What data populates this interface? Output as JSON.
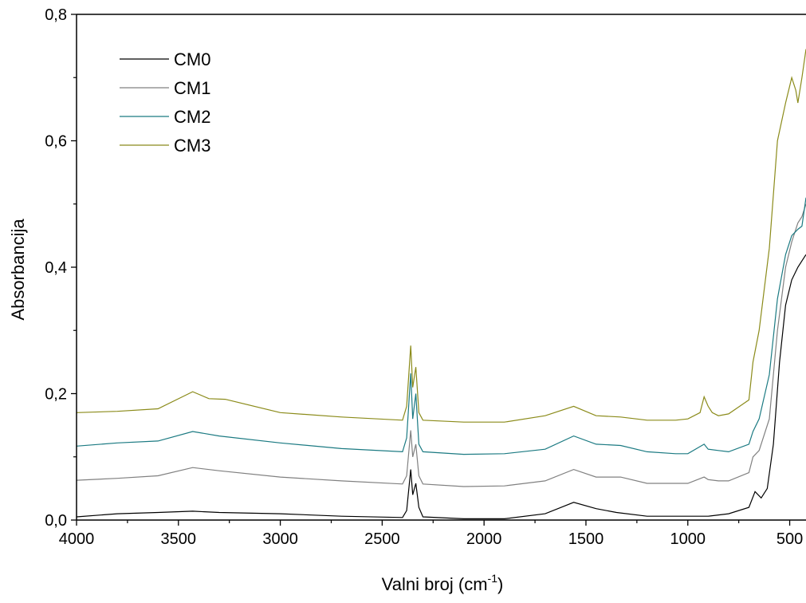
{
  "chart_data": {
    "type": "line",
    "xlabel": {
      "prefix": "Valni broj (cm",
      "superscript": "-1",
      "suffix": ")"
    },
    "ylabel": "Absorbancija",
    "xlim": [
      4000,
      420
    ],
    "ylim": [
      0,
      0.8
    ],
    "x_reversed": true,
    "x_ticks": [
      4000,
      3500,
      3000,
      2500,
      2000,
      1500,
      1000,
      500
    ],
    "x_tick_labels": [
      "4000",
      "3500",
      "3000",
      "2500",
      "2000",
      "1500",
      "1000",
      "500"
    ],
    "y_ticks": [
      0,
      0.2,
      0.4,
      0.6,
      0.8
    ],
    "y_tick_labels": [
      "0,0",
      "0,2",
      "0,4",
      "0,6",
      "0,8"
    ],
    "grid": false,
    "legend_position": "top-left",
    "series": [
      {
        "name": "CM0",
        "color": "#000000",
        "points": [
          [
            4000,
            0.005
          ],
          [
            3800,
            0.01
          ],
          [
            3600,
            0.012
          ],
          [
            3430,
            0.014
          ],
          [
            3300,
            0.012
          ],
          [
            3000,
            0.01
          ],
          [
            2700,
            0.006
          ],
          [
            2400,
            0.004
          ],
          [
            2380,
            0.015
          ],
          [
            2360,
            0.08
          ],
          [
            2350,
            0.04
          ],
          [
            2335,
            0.058
          ],
          [
            2320,
            0.02
          ],
          [
            2300,
            0.005
          ],
          [
            2100,
            0.002
          ],
          [
            1900,
            0.002
          ],
          [
            1700,
            0.01
          ],
          [
            1560,
            0.028
          ],
          [
            1450,
            0.018
          ],
          [
            1350,
            0.012
          ],
          [
            1200,
            0.006
          ],
          [
            1060,
            0.006
          ],
          [
            1000,
            0.006
          ],
          [
            900,
            0.006
          ],
          [
            800,
            0.01
          ],
          [
            700,
            0.02
          ],
          [
            670,
            0.045
          ],
          [
            640,
            0.035
          ],
          [
            610,
            0.05
          ],
          [
            580,
            0.12
          ],
          [
            550,
            0.25
          ],
          [
            520,
            0.34
          ],
          [
            490,
            0.38
          ],
          [
            460,
            0.4
          ],
          [
            440,
            0.41
          ],
          [
            420,
            0.42
          ]
        ]
      },
      {
        "name": "CM1",
        "color": "#808080",
        "points": [
          [
            4000,
            0.063
          ],
          [
            3800,
            0.066
          ],
          [
            3600,
            0.07
          ],
          [
            3430,
            0.083
          ],
          [
            3300,
            0.078
          ],
          [
            3000,
            0.068
          ],
          [
            2700,
            0.062
          ],
          [
            2400,
            0.057
          ],
          [
            2380,
            0.07
          ],
          [
            2360,
            0.142
          ],
          [
            2350,
            0.1
          ],
          [
            2335,
            0.12
          ],
          [
            2320,
            0.07
          ],
          [
            2300,
            0.057
          ],
          [
            2100,
            0.053
          ],
          [
            1900,
            0.054
          ],
          [
            1700,
            0.062
          ],
          [
            1560,
            0.08
          ],
          [
            1450,
            0.068
          ],
          [
            1330,
            0.068
          ],
          [
            1200,
            0.058
          ],
          [
            1060,
            0.058
          ],
          [
            1000,
            0.058
          ],
          [
            920,
            0.068
          ],
          [
            900,
            0.064
          ],
          [
            850,
            0.062
          ],
          [
            800,
            0.062
          ],
          [
            700,
            0.075
          ],
          [
            680,
            0.1
          ],
          [
            650,
            0.11
          ],
          [
            600,
            0.16
          ],
          [
            560,
            0.3
          ],
          [
            520,
            0.4
          ],
          [
            490,
            0.44
          ],
          [
            460,
            0.47
          ],
          [
            440,
            0.48
          ],
          [
            420,
            0.5
          ]
        ]
      },
      {
        "name": "CM2",
        "color": "#1b7a82",
        "points": [
          [
            4000,
            0.117
          ],
          [
            3800,
            0.122
          ],
          [
            3600,
            0.125
          ],
          [
            3430,
            0.14
          ],
          [
            3300,
            0.133
          ],
          [
            3000,
            0.122
          ],
          [
            2700,
            0.113
          ],
          [
            2400,
            0.108
          ],
          [
            2380,
            0.13
          ],
          [
            2360,
            0.232
          ],
          [
            2350,
            0.16
          ],
          [
            2335,
            0.2
          ],
          [
            2320,
            0.12
          ],
          [
            2300,
            0.108
          ],
          [
            2100,
            0.104
          ],
          [
            1900,
            0.105
          ],
          [
            1700,
            0.112
          ],
          [
            1560,
            0.133
          ],
          [
            1450,
            0.12
          ],
          [
            1330,
            0.118
          ],
          [
            1200,
            0.108
          ],
          [
            1060,
            0.105
          ],
          [
            1000,
            0.105
          ],
          [
            920,
            0.12
          ],
          [
            900,
            0.112
          ],
          [
            850,
            0.11
          ],
          [
            800,
            0.108
          ],
          [
            700,
            0.12
          ],
          [
            680,
            0.14
          ],
          [
            650,
            0.16
          ],
          [
            600,
            0.23
          ],
          [
            560,
            0.35
          ],
          [
            520,
            0.42
          ],
          [
            490,
            0.45
          ],
          [
            460,
            0.46
          ],
          [
            440,
            0.465
          ],
          [
            420,
            0.51
          ]
        ]
      },
      {
        "name": "CM3",
        "color": "#8b8b1a",
        "points": [
          [
            4000,
            0.17
          ],
          [
            3800,
            0.172
          ],
          [
            3600,
            0.176
          ],
          [
            3430,
            0.203
          ],
          [
            3350,
            0.192
          ],
          [
            3270,
            0.191
          ],
          [
            3000,
            0.17
          ],
          [
            2700,
            0.163
          ],
          [
            2400,
            0.158
          ],
          [
            2380,
            0.18
          ],
          [
            2360,
            0.276
          ],
          [
            2350,
            0.21
          ],
          [
            2335,
            0.242
          ],
          [
            2320,
            0.17
          ],
          [
            2300,
            0.158
          ],
          [
            2100,
            0.155
          ],
          [
            1900,
            0.155
          ],
          [
            1700,
            0.165
          ],
          [
            1560,
            0.18
          ],
          [
            1450,
            0.165
          ],
          [
            1330,
            0.163
          ],
          [
            1200,
            0.158
          ],
          [
            1060,
            0.158
          ],
          [
            1000,
            0.16
          ],
          [
            940,
            0.17
          ],
          [
            920,
            0.195
          ],
          [
            900,
            0.18
          ],
          [
            880,
            0.17
          ],
          [
            850,
            0.165
          ],
          [
            800,
            0.168
          ],
          [
            700,
            0.19
          ],
          [
            680,
            0.25
          ],
          [
            650,
            0.3
          ],
          [
            600,
            0.43
          ],
          [
            560,
            0.6
          ],
          [
            520,
            0.66
          ],
          [
            490,
            0.7
          ],
          [
            470,
            0.68
          ],
          [
            460,
            0.66
          ],
          [
            440,
            0.7
          ],
          [
            420,
            0.745
          ]
        ]
      }
    ]
  }
}
